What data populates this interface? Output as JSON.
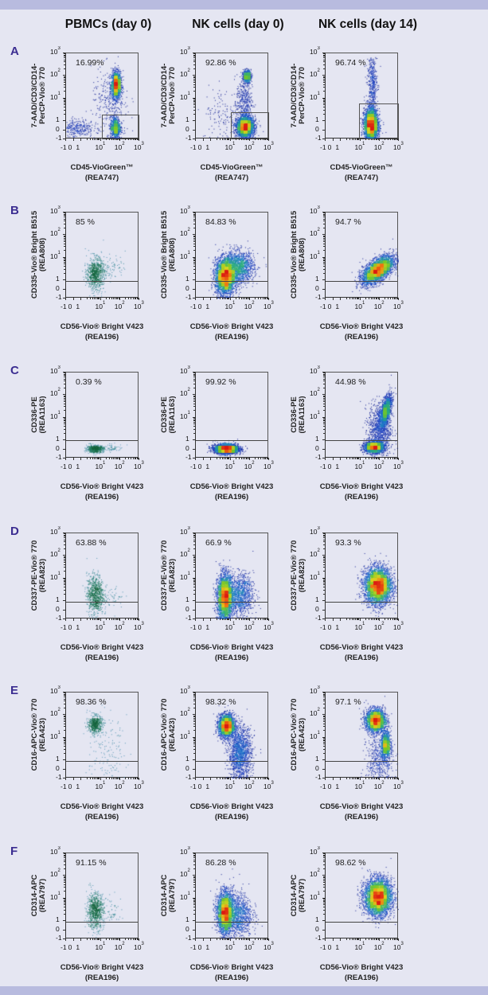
{
  "column_titles": [
    "PBMCs (day 0)",
    "NK cells (day 0)",
    "NK cells (day 14)"
  ],
  "colors": {
    "background": "#e5e6f2",
    "band": "#b8bbdf",
    "row_letter": "#3b2d91"
  },
  "chart_data": {
    "type": "scatter",
    "subtype": "flow-cytometry-density",
    "axis_scale": "biexponential",
    "ticks": [
      {
        "value": -1,
        "label": "-1",
        "sup": ""
      },
      {
        "value": 0,
        "label": "0",
        "sup": ""
      },
      {
        "value": 1,
        "label": "1",
        "sup": ""
      },
      {
        "value": 10,
        "label": "10",
        "sup": "1"
      },
      {
        "value": 100,
        "label": "10",
        "sup": "2"
      },
      {
        "value": 1000,
        "label": "10",
        "sup": "3"
      }
    ],
    "xlim": [
      -1,
      1000
    ],
    "ylim": [
      -1,
      1000
    ],
    "rows": [
      {
        "letter": "A",
        "ylabel": [
          "7-AAD/CD3/CD14-",
          "PerCP-Vio® 770"
        ],
        "xlabel": [
          "CD45-VioGreen™",
          "(REA747)"
        ],
        "plots": [
          {
            "percent": "16.99%",
            "palette": "density",
            "gate": {
              "type": "rect",
              "x": [
                11,
                1000
              ],
              "y": [
                -1,
                2
              ]
            },
            "populations": [
              {
                "x": 60,
                "y": 40,
                "sx": 0.12,
                "sy": 0.3,
                "n": 1600
              },
              {
                "x": 55,
                "y": 0.3,
                "sx": 0.13,
                "sy": 0.25,
                "n": 800
              },
              {
                "x": 0.3,
                "y": 0.3,
                "sx": 0.45,
                "sy": 0.2,
                "n": 300
              },
              {
                "x": 30,
                "y": 5,
                "sx": 0.5,
                "sy": 0.8,
                "n": 300
              }
            ]
          },
          {
            "percent": "92.86 %",
            "palette": "density",
            "gate": {
              "type": "rect",
              "x": [
                10,
                1000
              ],
              "y": [
                -1,
                2.5
              ]
            },
            "populations": [
              {
                "x": 55,
                "y": 0.4,
                "sx": 0.22,
                "sy": 0.22,
                "n": 3000
              },
              {
                "x": 70,
                "y": 100,
                "sx": 0.1,
                "sy": 0.13,
                "n": 600
              },
              {
                "x": 50,
                "y": 8,
                "sx": 0.2,
                "sy": 0.6,
                "n": 400
              },
              {
                "x": 5,
                "y": 2,
                "sx": 0.6,
                "sy": 0.6,
                "n": 150
              }
            ]
          },
          {
            "percent": "96.74 %",
            "palette": "density",
            "gate": {
              "type": "rect",
              "x": [
                9,
                1000
              ],
              "y": [
                -1,
                6
              ]
            },
            "populations": [
              {
                "x": 35,
                "y": 0.6,
                "sx": 0.18,
                "sy": 0.35,
                "n": 3200
              },
              {
                "x": 40,
                "y": 40,
                "sx": 0.13,
                "sy": 0.7,
                "n": 450
              }
            ]
          }
        ]
      },
      {
        "letter": "B",
        "ylabel": [
          "CD335-Vio® Bright B515",
          "(REA808)"
        ],
        "xlabel": [
          "CD56-Vio® Bright V423",
          "(REA196)"
        ],
        "plots": [
          {
            "percent": "85 %",
            "palette": "sparse",
            "gate": {
              "type": "hline",
              "y": 0.9
            },
            "populations": [
              {
                "x": 5,
                "y": 2,
                "sx": 0.22,
                "sy": 0.35,
                "n": 700
              },
              {
                "x": 30,
                "y": 4,
                "sx": 0.4,
                "sy": 0.3,
                "n": 90
              }
            ]
          },
          {
            "percent": "84.83 %",
            "palette": "density",
            "gate": {
              "type": "hline",
              "y": 0.9
            },
            "populations": [
              {
                "x": 5,
                "y": 1.5,
                "sx": 0.25,
                "sy": 0.4,
                "n": 3000
              },
              {
                "x": 25,
                "y": 4,
                "sx": 0.4,
                "sy": 0.35,
                "n": 1500
              }
            ]
          },
          {
            "percent": "94.7 %",
            "palette": "density",
            "gate": {
              "type": "hline",
              "y": 0.9
            },
            "populations": [
              {
                "x": 80,
                "y": 3,
                "sx": 0.4,
                "sy": 0.3,
                "rho": 0.6,
                "n": 3500
              }
            ]
          }
        ]
      },
      {
        "letter": "C",
        "ylabel": [
          "CD336-PE",
          "(REA1163)"
        ],
        "xlabel": [
          "CD56-Vio® Bright V423",
          "(REA196)"
        ],
        "plots": [
          {
            "percent": "0.39 %",
            "palette": "sparse",
            "gate": {
              "type": "hline",
              "y": 1
            },
            "populations": [
              {
                "x": 5,
                "y": 0.1,
                "sx": 0.22,
                "sy": 0.08,
                "n": 550
              },
              {
                "x": 40,
                "y": 0.2,
                "sx": 0.3,
                "sy": 0.08,
                "n": 60
              }
            ]
          },
          {
            "percent": "99.92 %",
            "palette": "density",
            "gate": {
              "type": "hline",
              "y": 1
            },
            "populations": [
              {
                "x": 6,
                "y": 0.1,
                "sx": 0.3,
                "sy": 0.1,
                "n": 3500
              }
            ]
          },
          {
            "percent": "44.98 %",
            "palette": "density",
            "gate": {
              "type": "hline",
              "y": 1
            },
            "populations": [
              {
                "x": 50,
                "y": 0.3,
                "sx": 0.25,
                "sy": 0.12,
                "n": 2000
              },
              {
                "x": 200,
                "y": 20,
                "sx": 0.15,
                "sy": 0.35,
                "rho": 0.6,
                "n": 1500
              },
              {
                "x": 100,
                "y": 3,
                "sx": 0.3,
                "sy": 0.6,
                "n": 1000
              }
            ]
          }
        ]
      },
      {
        "letter": "D",
        "ylabel": [
          "CD337-PE-Vio® 770",
          "(REA823)"
        ],
        "xlabel": [
          "CD56-Vio® Bright V423",
          "(REA196)"
        ],
        "plots": [
          {
            "percent": "63.88 %",
            "palette": "sparse",
            "gate": {
              "type": "hline",
              "y": 0.9
            },
            "populations": [
              {
                "x": 5,
                "y": 2,
                "sx": 0.22,
                "sy": 0.45,
                "n": 700
              },
              {
                "x": 40,
                "y": 1.5,
                "sx": 0.3,
                "sy": 0.3,
                "n": 50
              }
            ]
          },
          {
            "percent": "66.9 %",
            "palette": "density",
            "gate": {
              "type": "hline",
              "y": 0.9
            },
            "populations": [
              {
                "x": 5,
                "y": 1.5,
                "sx": 0.2,
                "sy": 0.5,
                "n": 3000
              },
              {
                "x": 30,
                "y": 2,
                "sx": 0.35,
                "sy": 0.45,
                "n": 1000
              }
            ]
          },
          {
            "percent": "93.3 %",
            "palette": "density",
            "gate": {
              "type": "hline",
              "y": 0.9
            },
            "populations": [
              {
                "x": 80,
                "y": 5,
                "sx": 0.35,
                "sy": 0.4,
                "n": 4000
              }
            ]
          }
        ]
      },
      {
        "letter": "E",
        "ylabel": [
          "CD16-APC-Vio® 770",
          "(REA423)"
        ],
        "xlabel": [
          "CD56-Vio® Bright V423",
          "(REA196)"
        ],
        "plots": [
          {
            "percent": "98.36 %",
            "palette": "sparse",
            "gate": {
              "type": "hline",
              "y": 0.9
            },
            "populations": [
              {
                "x": 5,
                "y": 40,
                "sx": 0.18,
                "sy": 0.2,
                "n": 500
              },
              {
                "x": 20,
                "y": 2,
                "sx": 0.5,
                "sy": 0.8,
                "n": 150
              }
            ]
          },
          {
            "percent": "98.32 %",
            "palette": "density",
            "gate": {
              "type": "hline",
              "y": 0.9
            },
            "populations": [
              {
                "x": 6,
                "y": 35,
                "sx": 0.2,
                "sy": 0.25,
                "n": 2500
              },
              {
                "x": 30,
                "y": 2,
                "sx": 0.3,
                "sy": 0.6,
                "n": 1500
              }
            ]
          },
          {
            "percent": "97.1 %",
            "palette": "density",
            "gate": {
              "type": "hline",
              "y": 0.9
            },
            "populations": [
              {
                "x": 60,
                "y": 60,
                "sx": 0.25,
                "sy": 0.25,
                "n": 2500
              },
              {
                "x": 200,
                "y": 5,
                "sx": 0.12,
                "sy": 0.3,
                "n": 1000
              },
              {
                "x": 100,
                "y": 1,
                "sx": 0.35,
                "sy": 0.6,
                "n": 500
              }
            ]
          }
        ]
      },
      {
        "letter": "F",
        "ylabel": [
          "CD314-APC",
          "(REA797)"
        ],
        "xlabel": [
          "CD56-Vio® Bright V423",
          "(REA196)"
        ],
        "plots": [
          {
            "percent": "91.15 %",
            "palette": "sparse",
            "gate": {
              "type": "hline",
              "y": 0.9
            },
            "populations": [
              {
                "x": 5,
                "y": 3,
                "sx": 0.22,
                "sy": 0.4,
                "n": 700
              },
              {
                "x": 40,
                "y": 3,
                "sx": 0.3,
                "sy": 0.3,
                "n": 50
              }
            ]
          },
          {
            "percent": "86.28 %",
            "palette": "density",
            "gate": {
              "type": "hline",
              "y": 0.9
            },
            "populations": [
              {
                "x": 5,
                "y": 2.5,
                "sx": 0.2,
                "sy": 0.45,
                "n": 2500
              },
              {
                "x": 20,
                "y": 2,
                "sx": 0.4,
                "sy": 0.5,
                "n": 1200
              }
            ]
          },
          {
            "percent": "98.62 %",
            "palette": "density",
            "gate": {
              "type": "hline",
              "y": 0.9
            },
            "populations": [
              {
                "x": 80,
                "y": 12,
                "sx": 0.35,
                "sy": 0.4,
                "n": 4000
              }
            ]
          }
        ]
      }
    ]
  }
}
